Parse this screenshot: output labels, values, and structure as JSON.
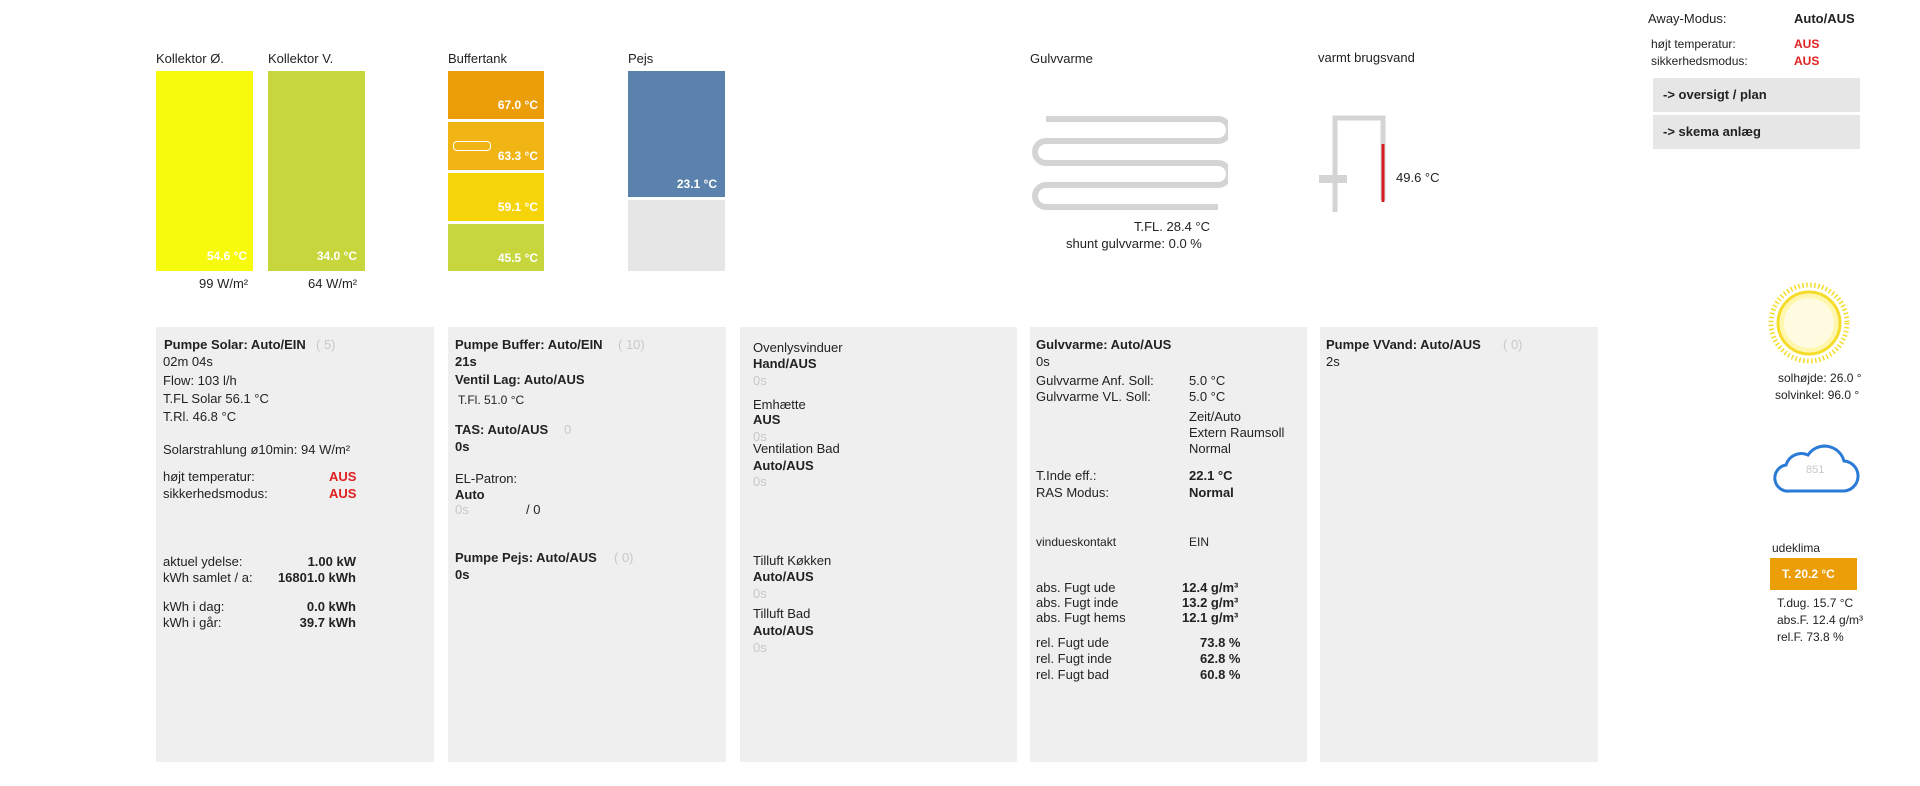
{
  "top": {
    "kollektor_o": {
      "title": "Kollektor Ø.",
      "temp": "54.6 °C",
      "power": "99 W/m²",
      "color": "#f7fa0c"
    },
    "kollektor_v": {
      "title": "Kollektor V.",
      "temp": "34.0 °C",
      "power": "64 W/m²",
      "color": "#c6d63c"
    },
    "buffertank": {
      "title": "Buffertank",
      "segments": [
        {
          "temp": "67.0 °C",
          "color": "#eb9e08"
        },
        {
          "temp": "63.3 °C",
          "color": "#f0b414"
        },
        {
          "temp": "59.1 °C",
          "color": "#f5d40a"
        },
        {
          "temp": "45.5 °C",
          "color": "#c6d63c"
        }
      ]
    },
    "pejs": {
      "title": "Pejs",
      "temp": "23.1 °C",
      "color": "#5a82ac"
    },
    "gulvvarme": {
      "title": "Gulvvarme",
      "tfl": "T.FL. 28.4 °C",
      "shunt": "shunt gulvvarme: 0.0 %"
    },
    "brugsvand": {
      "title": "varmt brugsvand",
      "temp": "49.6 °C"
    }
  },
  "away": {
    "label": "Away-Modus:",
    "value": "Auto/AUS",
    "hot_label": "højt temperatur:",
    "hot_value": "AUS",
    "safety_label": "sikkerhedsmodus:",
    "safety_value": "AUS",
    "btn_oversigt": "-> oversigt / plan",
    "btn_skema": "-> skema anlæg"
  },
  "weather": {
    "solhojde": "solhøjde: 26.0 °",
    "solvinkel": "solvinkel: 96.0 °",
    "cloud_value": "851",
    "udeklima_label": "udeklima",
    "temp": "T. 20.2 °C",
    "tdug": "T.dug. 15.7 °C",
    "absf": "abs.F. 12.4 g/m³",
    "relf": "rel.F. 73.8 %",
    "accent": "#eb9e08"
  },
  "solar": {
    "title": "Pumpe Solar: Auto/EIN",
    "count": "( 5)",
    "time": "02m 04s",
    "flow": "Flow: 103 l/h",
    "tfl": "T.FL Solar 56.1 °C",
    "trl": "T.Rl. 46.8 °C",
    "strahlung": "Solarstrahlung ø10min: 94 W/m²",
    "hot_label": "højt temperatur:",
    "hot_value": "AUS",
    "safety_label": "sikkerhedsmodus:",
    "safety_value": "AUS",
    "ydelse_label": "aktuel ydelse:",
    "ydelse_value": "1.00 kW",
    "samlet_label": "kWh samlet / a:",
    "samlet_value": "16801.0 kWh",
    "idag_label": "kWh i dag:",
    "idag_value": "0.0 kWh",
    "igar_label": "kWh i går:",
    "igar_value": "39.7 kWh"
  },
  "buffer": {
    "title": "Pumpe Buffer: Auto/EIN",
    "count": "( 10)",
    "time": "21s",
    "ventil": "Ventil Lag: Auto/AUS",
    "tfl": "T.Fl. 51.0 °C",
    "tas": "TAS: Auto/AUS",
    "tas_count": "0",
    "tas_time": "0s",
    "el_label": "EL-Patron:",
    "el_value": "Auto",
    "el_time": "0s",
    "el_count": "/ 0",
    "pejs_title": "Pumpe Pejs: Auto/AUS",
    "pejs_count": "( 0)",
    "pejs_time": "0s"
  },
  "vent": {
    "ovenlys_label": "Ovenlysvinduer",
    "ovenlys_value": "Hand/AUS",
    "ovenlys_time": "0s",
    "emhaette_label": "Emhætte",
    "emhaette_value": "AUS",
    "emhaette_time": "0s",
    "bad_label": "Ventilation Bad",
    "bad_value": "Auto/AUS",
    "bad_time": "0s",
    "kokken_label": "Tilluft Køkken",
    "kokken_value": "Auto/AUS",
    "kokken_time": "0s",
    "tbad_label": "Tilluft Bad",
    "tbad_value": "Auto/AUS",
    "tbad_time": "0s"
  },
  "floor": {
    "title": "Gulvvarme: Auto/AUS",
    "time": "0s",
    "anf_label": "Gulvvarme Anf. Soll:",
    "anf_value": "5.0 °C",
    "vl_label": "Gulvvarme VL. Soll:",
    "vl_value": "5.0 °C",
    "mode1": "Zeit/Auto",
    "mode2": "Extern Raumsoll",
    "mode3": "Normal",
    "tinde_label": "T.Inde eff.:",
    "tinde_value": "22.1 °C",
    "ras_label": "RAS Modus:",
    "ras_value": "Normal",
    "vindue_label": "vindueskontakt",
    "vindue_value": "EIN",
    "af_ude_label": "abs. Fugt ude",
    "af_ude_value": "12.4 g/m³",
    "af_inde_label": "abs. Fugt inde",
    "af_inde_value": "13.2 g/m³",
    "af_hems_label": "abs. Fugt hems",
    "af_hems_value": "12.1 g/m³",
    "rf_ude_label": "rel. Fugt ude",
    "rf_ude_value": "73.8 %",
    "rf_inde_label": "rel. Fugt inde",
    "rf_inde_value": "62.8 %",
    "rf_bad_label": "rel. Fugt bad",
    "rf_bad_value": "60.8 %"
  },
  "vvand": {
    "title": "Pumpe VVand: Auto/AUS",
    "count": "( 0)",
    "time": "2s"
  }
}
